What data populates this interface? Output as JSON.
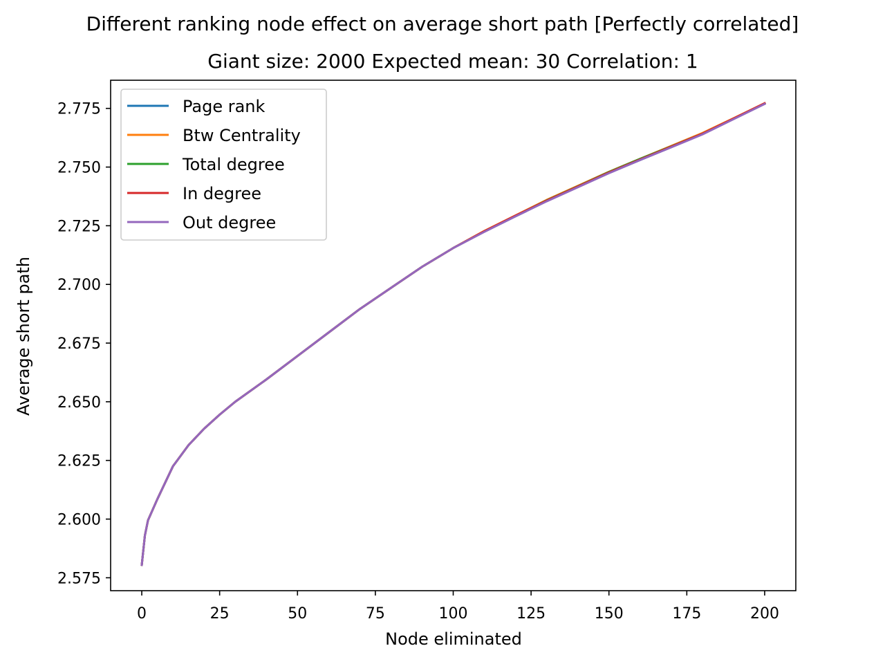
{
  "chart_data": {
    "type": "line",
    "title": "Different ranking node effect on average short path [Perfectly correlated]",
    "subtitle": "Giant size: 2000  Expected mean: 30  Correlation: 1",
    "xlabel": "Node eliminated",
    "ylabel": "Average short path",
    "xlim": [
      -10,
      210
    ],
    "ylim": [
      2.5695,
      2.787
    ],
    "xticks": [
      0,
      25,
      50,
      75,
      100,
      125,
      150,
      175,
      200
    ],
    "xtick_labels": [
      "0",
      "25",
      "50",
      "75",
      "100",
      "125",
      "150",
      "175",
      "200"
    ],
    "yticks": [
      2.575,
      2.6,
      2.625,
      2.65,
      2.675,
      2.7,
      2.725,
      2.75,
      2.775
    ],
    "ytick_labels": [
      "2.575",
      "2.600",
      "2.625",
      "2.650",
      "2.675",
      "2.700",
      "2.725",
      "2.750",
      "2.775"
    ],
    "grid": false,
    "legend_position": "upper-left",
    "x": [
      0,
      1,
      2,
      5,
      10,
      15,
      20,
      25,
      30,
      40,
      50,
      60,
      70,
      80,
      90,
      100,
      110,
      120,
      130,
      140,
      150,
      160,
      170,
      180,
      190,
      200
    ],
    "series": [
      {
        "name": "Page rank",
        "color": "#1f77b4",
        "values": [
          2.5805,
          2.593,
          2.5995,
          2.6085,
          2.6225,
          2.6315,
          2.6385,
          2.6445,
          2.65,
          2.6595,
          2.6695,
          2.6795,
          2.6895,
          2.6985,
          2.7075,
          2.7155,
          2.7225,
          2.729,
          2.7355,
          2.7415,
          2.7475,
          2.753,
          2.7585,
          2.764,
          2.7705,
          2.777
        ]
      },
      {
        "name": "Btw Centrality",
        "color": "#ff7f0e",
        "values": [
          2.5805,
          2.593,
          2.5995,
          2.6085,
          2.6225,
          2.6315,
          2.6385,
          2.6445,
          2.65,
          2.6595,
          2.6695,
          2.6795,
          2.6895,
          2.6985,
          2.7075,
          2.7155,
          2.7228,
          2.7294,
          2.736,
          2.742,
          2.748,
          2.7535,
          2.759,
          2.7645,
          2.7708,
          2.7772
        ]
      },
      {
        "name": "Total degree",
        "color": "#2ca02c",
        "values": [
          2.5805,
          2.593,
          2.5995,
          2.6085,
          2.6225,
          2.6315,
          2.6385,
          2.6445,
          2.65,
          2.6595,
          2.6695,
          2.6795,
          2.6895,
          2.6985,
          2.7075,
          2.7155,
          2.7226,
          2.7292,
          2.7358,
          2.7418,
          2.7479,
          2.7535,
          2.7588,
          2.7642,
          2.7706,
          2.7771
        ]
      },
      {
        "name": "In degree",
        "color": "#d62728",
        "values": [
          2.5805,
          2.593,
          2.5995,
          2.6085,
          2.6225,
          2.6315,
          2.6385,
          2.6445,
          2.65,
          2.6595,
          2.6695,
          2.6795,
          2.6895,
          2.6985,
          2.7075,
          2.7155,
          2.7227,
          2.7293,
          2.7357,
          2.7417,
          2.7477,
          2.7532,
          2.7587,
          2.7642,
          2.7707,
          2.7772
        ]
      },
      {
        "name": "Out degree",
        "color": "#9467bd",
        "values": [
          2.5805,
          2.593,
          2.5995,
          2.6085,
          2.6225,
          2.6315,
          2.6385,
          2.6445,
          2.65,
          2.6595,
          2.6695,
          2.6795,
          2.6895,
          2.6985,
          2.7075,
          2.7155,
          2.7224,
          2.729,
          2.7354,
          2.7414,
          2.7474,
          2.753,
          2.7584,
          2.7639,
          2.7704,
          2.7769
        ]
      }
    ]
  }
}
